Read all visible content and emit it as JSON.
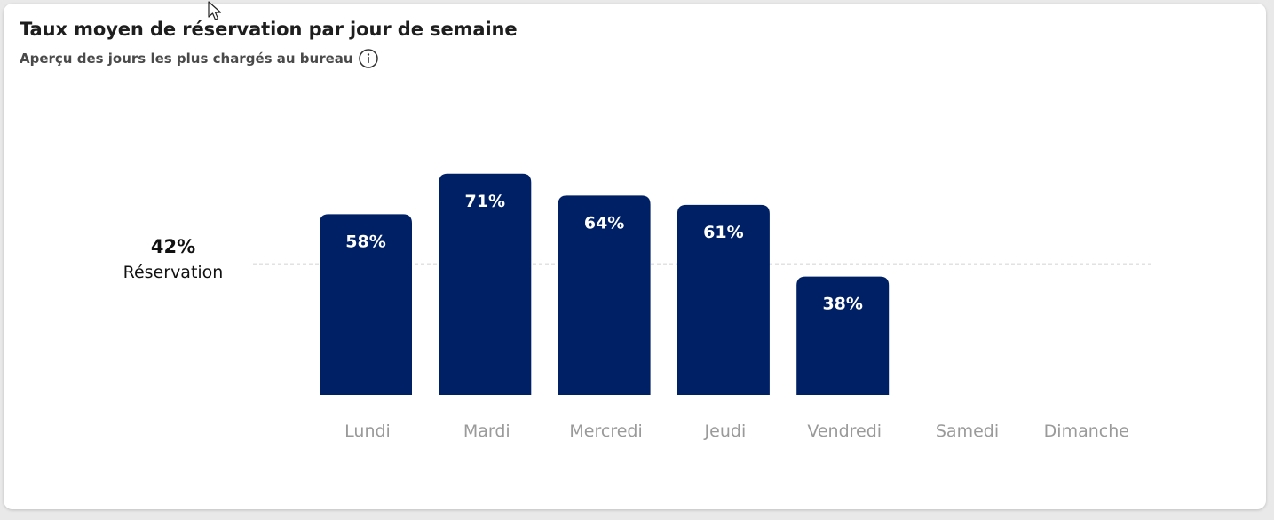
{
  "card": {
    "title": "Taux moyen de réservation par jour de semaine",
    "subtitle": "Aperçu des jours les plus chargés au bureau",
    "info_icon": "info-circle-icon"
  },
  "average": {
    "value_label": "42%",
    "label": "Réservation",
    "value": 42
  },
  "colors": {
    "bar": "#002066",
    "bar_label": "#ffffff",
    "axis_label": "#9a9a9a",
    "average_line": "#8a8a8a"
  },
  "chart_data": {
    "type": "bar",
    "title": "Taux moyen de réservation par jour de semaine",
    "subtitle": "Aperçu des jours les plus chargés au bureau",
    "categories": [
      "Lundi",
      "Mardi",
      "Mercredi",
      "Jeudi",
      "Vendredi",
      "Samedi",
      "Dimanche"
    ],
    "values": [
      58,
      71,
      64,
      61,
      38,
      null,
      null
    ],
    "value_labels": [
      "58%",
      "71%",
      "64%",
      "61%",
      "38%",
      "",
      ""
    ],
    "unit": "%",
    "reference_line": {
      "value": 42,
      "style": "dashed"
    },
    "ylim": [
      0,
      100
    ],
    "grid": false,
    "legend": "none"
  }
}
